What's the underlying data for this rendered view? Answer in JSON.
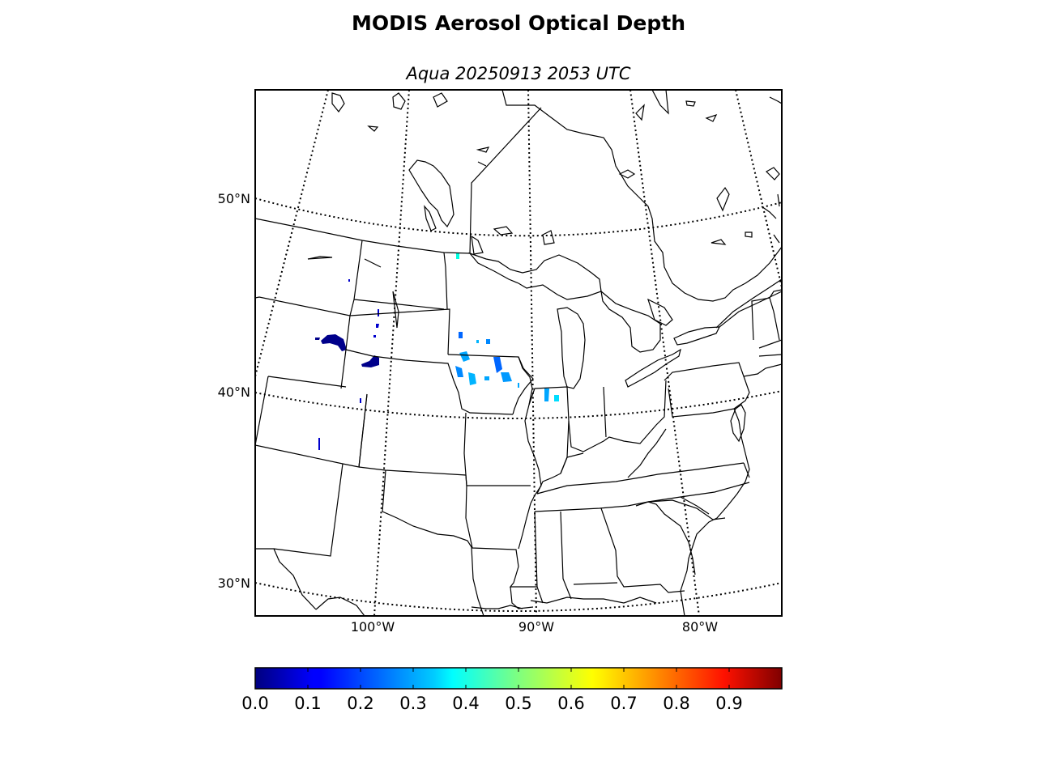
{
  "title": "MODIS Aerosol Optical Depth",
  "subtitle": "Aqua 20250913 2053 UTC",
  "latitude_labels": [
    "50°N",
    "40°N",
    "30°N"
  ],
  "longitude_labels": [
    "100°W",
    "90°W",
    "80°W"
  ],
  "colorbar": {
    "ticks": [
      "0.0",
      "0.1",
      "0.2",
      "0.3",
      "0.4",
      "0.5",
      "0.6",
      "0.7",
      "0.8",
      "0.9"
    ],
    "range": [
      0.0,
      1.0
    ],
    "colormap": "jet",
    "stops": [
      "#00007f",
      "#0000ff",
      "#007fff",
      "#00ffff",
      "#7fff7f",
      "#ffff00",
      "#ff7f00",
      "#ff0000",
      "#7f0000"
    ]
  },
  "aerosol_color_scale": {
    "darkest": "#00008b",
    "low": "#0033ff",
    "mid": "#00a6ff",
    "cyan": "#00ffe0"
  }
}
